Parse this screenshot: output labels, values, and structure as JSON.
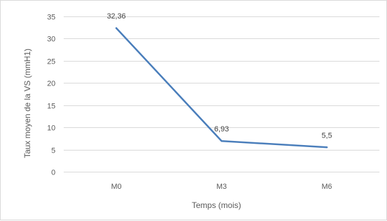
{
  "chart_data": {
    "type": "line",
    "categories": [
      "M0",
      "M3",
      "M6"
    ],
    "series": [
      {
        "values": [
          32.36,
          6.93,
          5.5
        ],
        "data_labels": [
          "32,36",
          "6,93",
          "5,5"
        ],
        "color": "#4a7ebb"
      }
    ],
    "xlabel": "Temps (mois)",
    "ylabel": "Taux moyen de la VS (mmH1)",
    "ylim": [
      0,
      35
    ],
    "yticks": [
      0,
      5,
      10,
      15,
      20,
      25,
      30,
      35
    ],
    "grid": true,
    "legend": "none",
    "gridColor": "#d9d9d9",
    "textColor": "#595959"
  }
}
